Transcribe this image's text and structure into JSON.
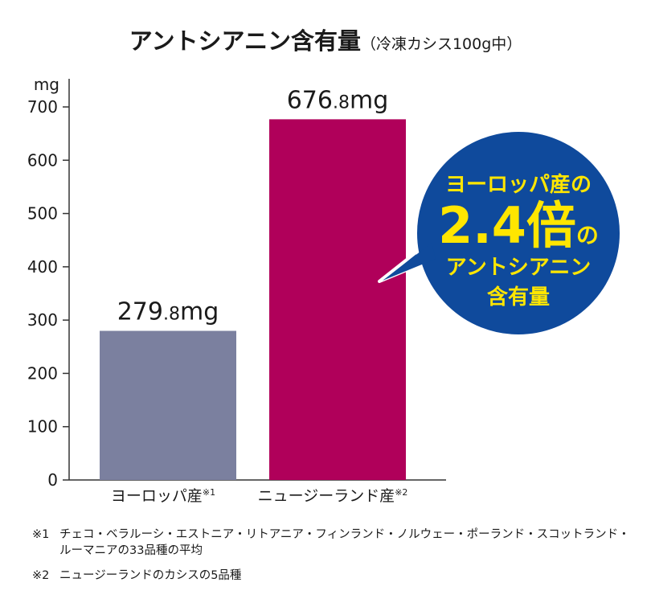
{
  "chart_data": {
    "type": "bar",
    "title": "アントシアニン含有量",
    "subtitle": "（冷凍カシス100g中）",
    "ylabel": "mg",
    "ylim": [
      0,
      700
    ],
    "yticks": [
      0,
      100,
      200,
      300,
      400,
      500,
      600,
      700
    ],
    "grid": false,
    "categories": [
      "ヨーロッパ産",
      "ニュージーランド産"
    ],
    "category_notes": [
      "※1",
      "※2"
    ],
    "values": [
      279.8,
      676.8
    ],
    "data_labels": [
      {
        "int": "279",
        "dec": ".8",
        "unit": "mg"
      },
      {
        "int": "676",
        "dec": ".8",
        "unit": "mg"
      }
    ],
    "colors": [
      "#7b809f",
      "#b0005a"
    ],
    "annotation": {
      "line1": "ヨーロッパ産の",
      "ratio": "2.4倍",
      "ratio_suffix": "の",
      "line3": "アントシアニン",
      "line4": "含有量",
      "bg_color": "#0f4a9c",
      "text_color": "#ffe600",
      "ratio_color": "#ffe600"
    }
  },
  "footnotes": [
    {
      "mark": "※1",
      "lines": [
        "チェコ・ベラルーシ・エストニア・リトアニア・フィンランド・ノルウェー・ポーランド・スコットランド・",
        "ルーマニアの33品種の平均"
      ]
    },
    {
      "mark": "※2",
      "lines": [
        "ニュージーランドのカシスの5品種"
      ]
    }
  ]
}
